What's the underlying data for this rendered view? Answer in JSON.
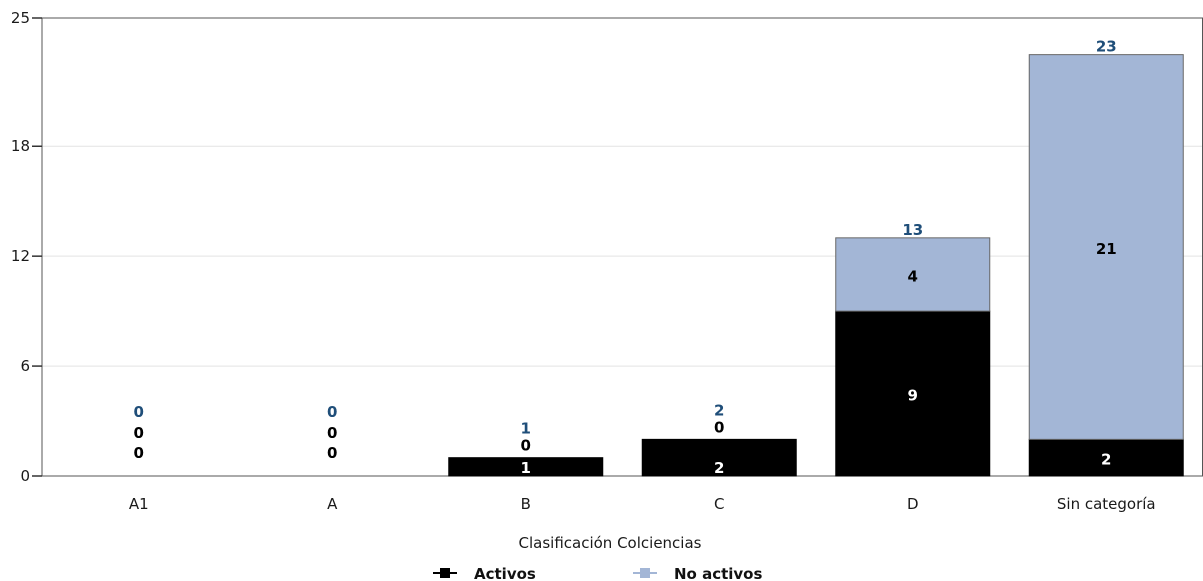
{
  "chart_data": {
    "type": "bar",
    "stacked": true,
    "xlabel": "Clasificación Colciencias",
    "categories": [
      "A1",
      "A",
      "B",
      "C",
      "D",
      "Sin categoría"
    ],
    "series": [
      {
        "name": "Activos",
        "values": [
          0,
          0,
          1,
          2,
          9,
          2
        ],
        "color": "#000000",
        "label_color": "#ffffff"
      },
      {
        "name": "No activos",
        "values": [
          0,
          0,
          0,
          0,
          4,
          21
        ],
        "color": "#a3b6d6",
        "label_color": "#000000"
      }
    ],
    "totals": [
      0,
      0,
      1,
      2,
      13,
      23
    ],
    "yticks": [
      0,
      6,
      12,
      18,
      25
    ],
    "ylim": [
      0,
      25
    ],
    "grid": true,
    "legend_position": "bottom"
  }
}
